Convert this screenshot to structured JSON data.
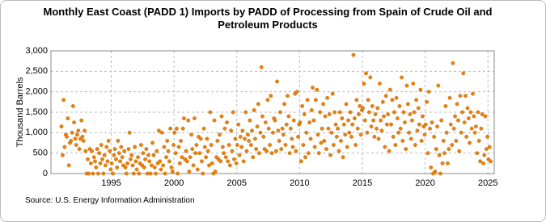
{
  "chart_data": {
    "type": "scatter",
    "title": "Monthly East Coast (PADD 1) Imports by PADD of Processing from Spain of Crude Oil and Petroleum Products",
    "y_label": "Thousand Barrels",
    "source": "Source: U.S. Energy Information Administration",
    "xlim": [
      1990.2,
      2025.5
    ],
    "xticks": [
      1995,
      2000,
      2005,
      2010,
      2015,
      2020,
      2025
    ],
    "ylim": [
      0,
      3000
    ],
    "yticks": [
      0,
      500,
      {
        "value": 1000,
        "label": "1,000"
      },
      {
        "value": 1500,
        "label": "1,500"
      },
      {
        "value": 2000,
        "label": "2,000"
      },
      {
        "value": 2500,
        "label": "2,500"
      },
      {
        "value": 3000,
        "label": "3,000"
      }
    ],
    "grid": true,
    "series": [
      {
        "color": "#e8820c",
        "x": [
          1991.04,
          1991.13,
          1991.21,
          1991.29,
          1991.38,
          1991.46,
          1991.54,
          1991.63,
          1991.71,
          1991.79,
          1991.88,
          1991.96,
          1992.04,
          1992.13,
          1992.21,
          1992.29,
          1992.38,
          1992.46,
          1992.54,
          1992.63,
          1992.71,
          1992.79,
          1992.88,
          1992.96,
          1993.04,
          1993.13,
          1993.21,
          1993.29,
          1993.38,
          1993.46,
          1993.54,
          1993.63,
          1993.71,
          1993.79,
          1993.88,
          1993.96,
          1994.04,
          1994.13,
          1994.21,
          1994.29,
          1994.38,
          1994.46,
          1994.54,
          1994.63,
          1994.71,
          1994.79,
          1994.88,
          1994.96,
          1995.04,
          1995.13,
          1995.21,
          1995.29,
          1995.38,
          1995.46,
          1995.54,
          1995.63,
          1995.71,
          1995.79,
          1995.88,
          1995.96,
          1996.04,
          1996.13,
          1996.21,
          1996.29,
          1996.38,
          1996.46,
          1996.54,
          1996.63,
          1996.71,
          1996.79,
          1996.88,
          1996.96,
          1997.04,
          1997.13,
          1997.21,
          1997.29,
          1997.38,
          1997.46,
          1997.54,
          1997.63,
          1997.71,
          1997.79,
          1997.88,
          1997.96,
          1998.04,
          1998.13,
          1998.21,
          1998.29,
          1998.38,
          1998.46,
          1998.54,
          1998.63,
          1998.71,
          1998.79,
          1998.88,
          1998.96,
          1999.04,
          1999.13,
          1999.21,
          1999.29,
          1999.38,
          1999.46,
          1999.54,
          1999.63,
          1999.71,
          1999.79,
          1999.88,
          1999.96,
          2000.04,
          2000.13,
          2000.21,
          2000.29,
          2000.38,
          2000.46,
          2000.54,
          2000.63,
          2000.71,
          2000.79,
          2000.88,
          2000.96,
          2001.04,
          2001.13,
          2001.21,
          2001.29,
          2001.38,
          2001.46,
          2001.54,
          2001.63,
          2001.71,
          2001.79,
          2001.88,
          2001.96,
          2002.04,
          2002.13,
          2002.21,
          2002.29,
          2002.38,
          2002.46,
          2002.54,
          2002.63,
          2002.71,
          2002.79,
          2002.88,
          2002.96,
          2003.04,
          2003.13,
          2003.21,
          2003.29,
          2003.38,
          2003.46,
          2003.54,
          2003.63,
          2003.71,
          2003.79,
          2003.88,
          2003.96,
          2004.04,
          2004.13,
          2004.21,
          2004.29,
          2004.38,
          2004.46,
          2004.54,
          2004.63,
          2004.71,
          2004.79,
          2004.88,
          2004.96,
          2005.04,
          2005.13,
          2005.21,
          2005.29,
          2005.38,
          2005.46,
          2005.54,
          2005.63,
          2005.71,
          2005.79,
          2005.88,
          2005.96,
          2006.04,
          2006.13,
          2006.21,
          2006.29,
          2006.38,
          2006.46,
          2006.54,
          2006.63,
          2006.71,
          2006.79,
          2006.88,
          2006.96,
          2007.04,
          2007.13,
          2007.21,
          2007.29,
          2007.38,
          2007.46,
          2007.54,
          2007.63,
          2007.71,
          2007.79,
          2007.88,
          2007.96,
          2008.04,
          2008.13,
          2008.21,
          2008.29,
          2008.38,
          2008.46,
          2008.54,
          2008.63,
          2008.71,
          2008.79,
          2008.88,
          2008.96,
          2009.04,
          2009.13,
          2009.21,
          2009.29,
          2009.38,
          2009.46,
          2009.54,
          2009.63,
          2009.71,
          2009.79,
          2009.88,
          2009.96,
          2010.04,
          2010.13,
          2010.21,
          2010.29,
          2010.38,
          2010.46,
          2010.54,
          2010.63,
          2010.71,
          2010.79,
          2010.88,
          2010.96,
          2011.04,
          2011.13,
          2011.21,
          2011.29,
          2011.38,
          2011.46,
          2011.54,
          2011.63,
          2011.71,
          2011.79,
          2011.88,
          2011.96,
          2012.04,
          2012.13,
          2012.21,
          2012.29,
          2012.38,
          2012.46,
          2012.54,
          2012.63,
          2012.71,
          2012.79,
          2012.88,
          2012.96,
          2013.04,
          2013.13,
          2013.21,
          2013.29,
          2013.38,
          2013.46,
          2013.54,
          2013.63,
          2013.71,
          2013.79,
          2013.88,
          2013.96,
          2014.04,
          2014.13,
          2014.21,
          2014.29,
          2014.38,
          2014.46,
          2014.54,
          2014.63,
          2014.71,
          2014.79,
          2014.88,
          2014.96,
          2015.04,
          2015.13,
          2015.21,
          2015.29,
          2015.38,
          2015.46,
          2015.54,
          2015.63,
          2015.71,
          2015.79,
          2015.88,
          2015.96,
          2016.04,
          2016.13,
          2016.21,
          2016.29,
          2016.38,
          2016.46,
          2016.54,
          2016.63,
          2016.71,
          2016.79,
          2016.88,
          2016.96,
          2017.04,
          2017.13,
          2017.21,
          2017.29,
          2017.38,
          2017.46,
          2017.54,
          2017.63,
          2017.71,
          2017.79,
          2017.88,
          2017.96,
          2018.04,
          2018.13,
          2018.21,
          2018.29,
          2018.38,
          2018.46,
          2018.54,
          2018.63,
          2018.71,
          2018.79,
          2018.88,
          2018.96,
          2019.04,
          2019.13,
          2019.21,
          2019.29,
          2019.38,
          2019.46,
          2019.54,
          2019.63,
          2019.71,
          2019.79,
          2019.88,
          2019.96,
          2020.04,
          2020.13,
          2020.21,
          2020.29,
          2020.38,
          2020.46,
          2020.54,
          2020.63,
          2020.71,
          2020.79,
          2020.88,
          2020.96,
          2021.04,
          2021.13,
          2021.21,
          2021.29,
          2021.38,
          2021.46,
          2021.54,
          2021.63,
          2021.71,
          2021.79,
          2021.88,
          2021.96,
          2022.04,
          2022.13,
          2022.21,
          2022.29,
          2022.38,
          2022.46,
          2022.54,
          2022.63,
          2022.71,
          2022.79,
          2022.88,
          2022.96,
          2023.04,
          2023.13,
          2023.21,
          2023.29,
          2023.38,
          2023.46,
          2023.54,
          2023.63,
          2023.71,
          2023.79,
          2023.88,
          2023.96,
          2024.04,
          2024.13,
          2024.21,
          2024.29,
          2024.38,
          2024.46,
          2024.54,
          2024.63,
          2024.71,
          2024.79,
          2024.88,
          2024.96,
          2025.04,
          2025.13,
          2025.21
        ],
        "values": [
          1150,
          450,
          1800,
          650,
          950,
          900,
          1350,
          200,
          750,
          800,
          1000,
          1650,
          1250,
          850,
          700,
          950,
          1050,
          600,
          850,
          1300,
          900,
          800,
          1050,
          550,
          0,
          350,
          0,
          600,
          250,
          550,
          0,
          400,
          300,
          150,
          600,
          0,
          500,
          250,
          700,
          350,
          0,
          450,
          200,
          650,
          300,
          800,
          550,
          100,
          250,
          0,
          450,
          600,
          350,
          150,
          800,
          500,
          300,
          650,
          400,
          200,
          550,
          150,
          0,
          250,
          600,
          1000,
          350,
          450,
          200,
          0,
          650,
          300,
          100,
          400,
          0,
          250,
          700,
          200,
          500,
          150,
          350,
          600,
          0,
          450,
          300,
          0,
          200,
          750,
          450,
          150,
          0,
          550,
          250,
          1050,
          300,
          100,
          1000,
          200,
          650,
          0,
          400,
          800,
          550,
          300,
          1100,
          150,
          50,
          700,
          1000,
          500,
          1100,
          0,
          650,
          250,
          800,
          400,
          1100,
          1350,
          350,
          550,
          300,
          1300,
          50,
          400,
          950,
          600,
          200,
          1350,
          500,
          700,
          100,
          900,
          500,
          850,
          300,
          0,
          1100,
          650,
          400,
          850,
          550,
          200,
          1500,
          700,
          250,
          0,
          1300,
          50,
          400,
          800,
          350,
          950,
          300,
          1400,
          650,
          500,
          1100,
          400,
          1250,
          300,
          700,
          200,
          1050,
          550,
          1500,
          350,
          850,
          250,
          700,
          1200,
          450,
          900,
          650,
          1050,
          300,
          850,
          1500,
          550,
          950,
          800,
          1300,
          700,
          1050,
          400,
          1550,
          850,
          600,
          1150,
          1700,
          500,
          1000,
          2600,
          1400,
          900,
          600,
          1250,
          550,
          1800,
          1100,
          700,
          1900,
          500,
          1000,
          1350,
          1300,
          550,
          2250,
          1050,
          800,
          1500,
          600,
          1100,
          950,
          1700,
          700,
          1200,
          1900,
          1400,
          500,
          1100,
          850,
          650,
          1300,
          1950,
          550,
          2000,
          900,
          1200,
          1250,
          300,
          1650,
          700,
          1450,
          400,
          1000,
          1800,
          500,
          1250,
          850,
          1550,
          2100,
          1300,
          650,
          1800,
          2050,
          950,
          500,
          1500,
          750,
          1100,
          1700,
          800,
          1400,
          600,
          1850,
          1100,
          1450,
          450,
          1000,
          1950,
          700,
          1500,
          1200,
          900,
          1100,
          550,
          1500,
          800,
          1350,
          400,
          1200,
          950,
          1700,
          650,
          1300,
          1000,
          1500,
          900,
          1200,
          2900,
          1350,
          700,
          1800,
          1100,
          1450,
          1650,
          950,
          1550,
          1600,
          2200,
          1300,
          2450,
          1000,
          1800,
          1500,
          2350,
          1150,
          1650,
          1300,
          900,
          1450,
          1100,
          1600,
          850,
          2200,
          1300,
          1050,
          1750,
          1400,
          650,
          1900,
          1200,
          1450,
          550,
          2050,
          1200,
          1800,
          900,
          1500,
          700,
          1850,
          1350,
          1000,
          1650,
          1100,
          2350,
          800,
          1500,
          1250,
          600,
          2150,
          1700,
          1000,
          1450,
          850,
          1300,
          2200,
          1500,
          700,
          1800,
          1050,
          1600,
          1200,
          2050,
          800,
          1400,
          1150,
          950,
          1200,
          1750,
          500,
          2000,
          1100,
          150,
          1250,
          0,
          900,
          50,
          600,
          1150,
          2150,
          450,
          0,
          1300,
          250,
          800,
          500,
          1650,
          1000,
          250,
          600,
          1850,
          1200,
          700,
          2700,
          1100,
          1400,
          800,
          1700,
          1300,
          550,
          1900,
          1000,
          1500,
          2450,
          1250,
          1900,
          900,
          1600,
          1350,
          750,
          1500,
          1100,
          1950,
          1400,
          1000,
          1150,
          500,
          1500,
          800,
          300,
          1100,
          1450,
          250,
          450,
          1400,
          600,
          900,
          350,
          650,
          300
        ]
      }
    ]
  }
}
